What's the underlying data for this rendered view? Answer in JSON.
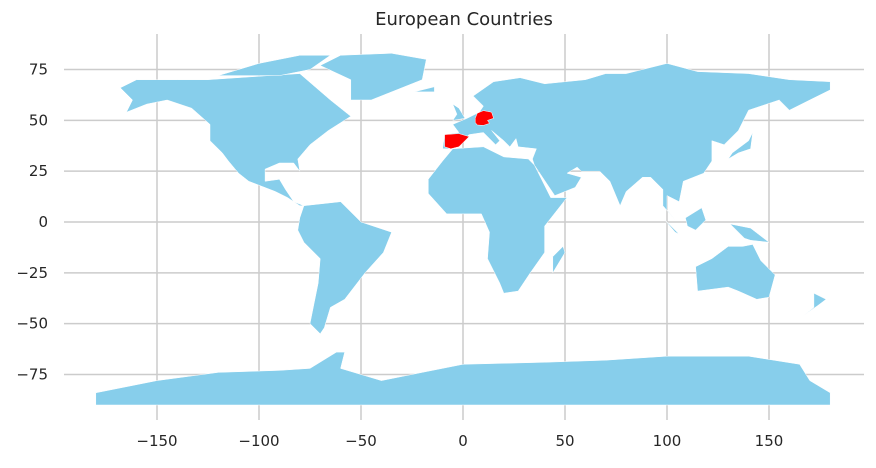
{
  "chart_data": {
    "type": "map",
    "title": "European Countries",
    "xlim": [
      -195,
      197
    ],
    "ylim": [
      -92,
      92
    ],
    "x_ticks": [
      -150,
      -100,
      -50,
      0,
      50,
      100,
      150
    ],
    "y_ticks": [
      75,
      50,
      25,
      0,
      -25,
      -50,
      -75
    ],
    "x_tick_labels": [
      "−150",
      "−100",
      "−50",
      "0",
      "50",
      "100",
      "150"
    ],
    "y_tick_labels": [
      "75",
      "50",
      "25",
      "0",
      "−25",
      "−50",
      "−75"
    ],
    "grid": true,
    "colors": {
      "base": "#87ceeb",
      "highlight": "#ff0000",
      "border": "#ffffff",
      "grid": "#cccccc"
    }
  }
}
